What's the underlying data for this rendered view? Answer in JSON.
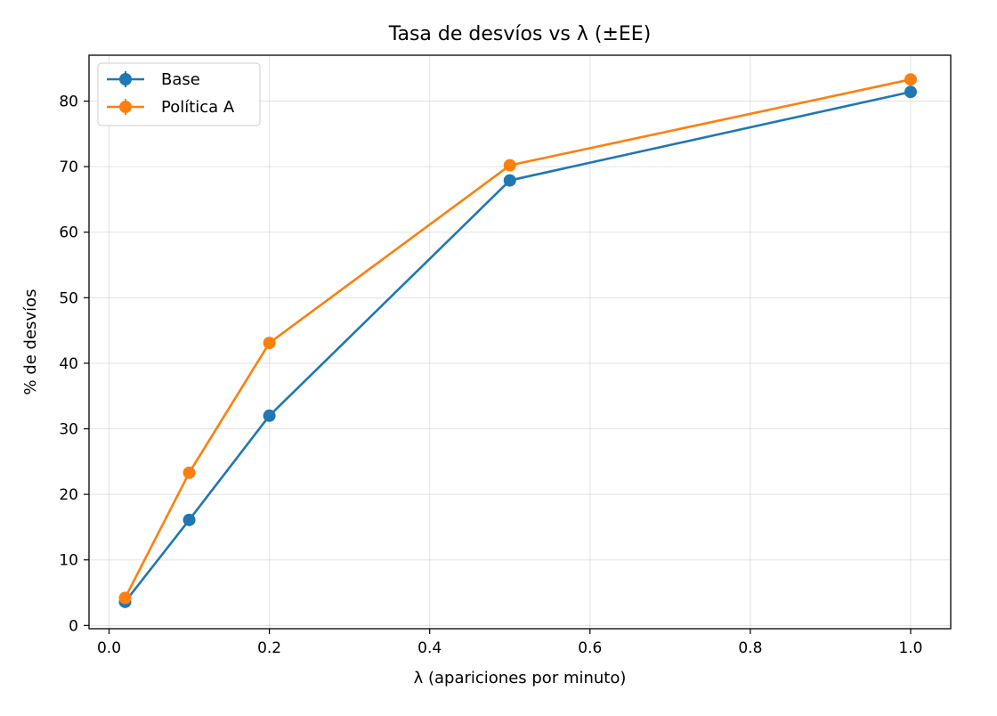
{
  "chart_data": {
    "type": "line",
    "title": "Tasa de desvíos vs λ (±EE)",
    "xlabel": "λ (apariciones por minuto)",
    "ylabel": "% de desvíos",
    "xlim": [
      -0.025,
      1.05
    ],
    "ylim": [
      -0.5,
      87
    ],
    "x_ticks": [
      0.0,
      0.2,
      0.4,
      0.6,
      0.8,
      1.0
    ],
    "x_tick_labels": [
      "0.0",
      "0.2",
      "0.4",
      "0.6",
      "0.8",
      "1.0"
    ],
    "y_ticks": [
      0,
      10,
      20,
      30,
      40,
      50,
      60,
      70,
      80
    ],
    "y_tick_labels": [
      "0",
      "10",
      "20",
      "30",
      "40",
      "50",
      "60",
      "70",
      "80"
    ],
    "grid": true,
    "legend_position": "top-left",
    "x": [
      0.02,
      0.1,
      0.2,
      0.5,
      1.0
    ],
    "series": [
      {
        "name": "Base",
        "color": "#1f77b4",
        "values": [
          3.6,
          16.1,
          32.0,
          67.9,
          81.4
        ]
      },
      {
        "name": "Política A",
        "color": "#ff7f0e",
        "values": [
          4.2,
          23.3,
          43.1,
          70.2,
          83.3
        ]
      }
    ]
  }
}
